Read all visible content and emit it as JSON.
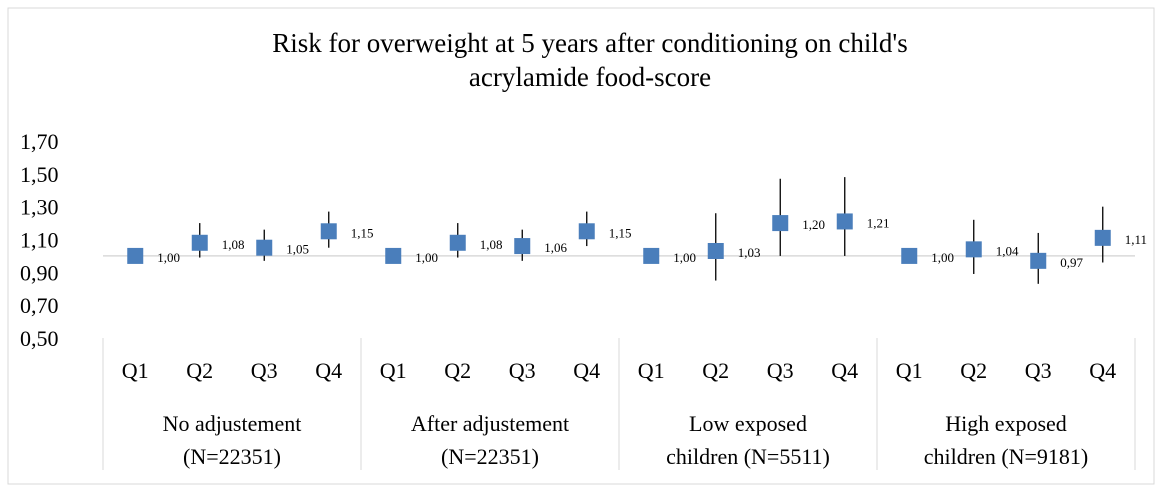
{
  "chart_data": {
    "type": "errorbar",
    "title": [
      "Risk for overweight at 5 years after conditioning on child's",
      "acrylamide food-score"
    ],
    "groups": [
      {
        "label": [
          "No adjustement",
          "(N=22351)"
        ],
        "categories": [
          "Q1",
          "Q2",
          "Q3",
          "Q4"
        ]
      },
      {
        "label": [
          "After adjustement",
          "(N=22351)"
        ],
        "categories": [
          "Q1",
          "Q2",
          "Q3",
          "Q4"
        ]
      },
      {
        "label": [
          "Low exposed",
          "children (N=5511)"
        ],
        "categories": [
          "Q1",
          "Q2",
          "Q3",
          "Q4"
        ]
      },
      {
        "label": [
          "High exposed",
          "children (N=9181)"
        ],
        "categories": [
          "Q1",
          "Q2",
          "Q3",
          "Q4"
        ]
      }
    ],
    "series": [
      {
        "color": "#4a7ebb",
        "values": [
          1.0,
          1.08,
          1.05,
          1.15,
          1.0,
          1.08,
          1.06,
          1.15,
          1.0,
          1.03,
          1.2,
          1.21,
          1.0,
          1.04,
          0.97,
          1.11
        ],
        "value_labels": [
          "1,00",
          "1,08",
          "1,05",
          "1,15",
          "1,00",
          "1,08",
          "1,06",
          "1,15",
          "1,00",
          "1,03",
          "1,20",
          "1,21",
          "1,00",
          "1,04",
          "0,97",
          "1,11"
        ],
        "lower": [
          null,
          0.99,
          0.97,
          1.05,
          null,
          0.99,
          0.97,
          1.06,
          null,
          0.85,
          1.0,
          1.0,
          null,
          0.89,
          0.83,
          0.96
        ],
        "upper": [
          null,
          1.2,
          1.16,
          1.27,
          null,
          1.2,
          1.16,
          1.27,
          null,
          1.26,
          1.47,
          1.48,
          null,
          1.22,
          1.14,
          1.3
        ]
      }
    ],
    "ylim": [
      0.5,
      1.7
    ],
    "yticks": [
      {
        "value": 0.5,
        "label": "0,50"
      },
      {
        "value": 0.7,
        "label": "0,70"
      },
      {
        "value": 0.9,
        "label": "0,90"
      },
      {
        "value": 1.1,
        "label": "1,10"
      },
      {
        "value": 1.3,
        "label": "1,30"
      },
      {
        "value": 1.5,
        "label": "1,50"
      },
      {
        "value": 1.7,
        "label": "1,70"
      }
    ],
    "x_axis_at": 1.0
  }
}
